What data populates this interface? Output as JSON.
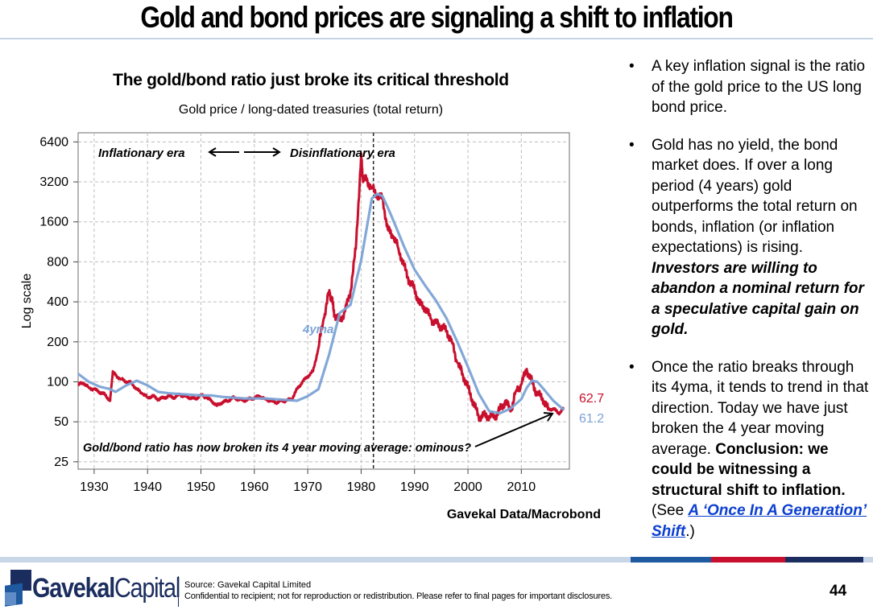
{
  "slide": {
    "title": "Gold and bond prices are signaling a shift to inflation",
    "page_number": "44",
    "accent_colors": [
      "#1f5aa0",
      "#c8102e",
      "#1b2d5e"
    ]
  },
  "chart_data": {
    "type": "line",
    "title": "The gold/bond ratio just broke its critical threshold",
    "subtitle": "Gold price / long-dated treasuries (total return)",
    "ylabel": "Log scale",
    "yscale": "log",
    "ylim": [
      22,
      7500
    ],
    "xlim": [
      1927,
      2019
    ],
    "yticks": [
      6400,
      3200,
      1600,
      800,
      400,
      200,
      100,
      50,
      25
    ],
    "xticks": [
      1930,
      1940,
      1950,
      1960,
      1970,
      1980,
      1990,
      2000,
      2010
    ],
    "grid": true,
    "source_label": "Gavekal Data/Macrobond",
    "vline_x": 1982.3,
    "annotations": {
      "era_left": "Inflationary era",
      "era_right": "Disinflationary era",
      "ma_label": "4yma",
      "bottom_note": "Gold/bond ratio has now broken its 4 year moving average: ominous?"
    },
    "end_labels": {
      "ratio": "62.7",
      "ma": "61.2"
    },
    "series": [
      {
        "color": "#c8102e",
        "x": [
          1927,
          1928,
          1929,
          1930,
          1931,
          1932,
          1933,
          1933.5,
          1934,
          1935,
          1936,
          1937,
          1938,
          1939,
          1940,
          1941,
          1942,
          1943,
          1944,
          1945,
          1946,
          1947,
          1948,
          1949,
          1950,
          1951,
          1952,
          1953,
          1954,
          1955,
          1956,
          1957,
          1958,
          1959,
          1960,
          1961,
          1962,
          1963,
          1964,
          1965,
          1966,
          1967,
          1968,
          1969,
          1970,
          1971,
          1972,
          1973,
          1974,
          1974.5,
          1975,
          1976,
          1977,
          1978,
          1979,
          1980,
          1980.3,
          1981,
          1982,
          1983,
          1984,
          1985,
          1986,
          1987,
          1988,
          1989,
          1990,
          1991,
          1992,
          1993,
          1994,
          1995,
          1996,
          1997,
          1998,
          1999,
          2000,
          2001,
          2002,
          2003,
          2004,
          2005,
          2006,
          2007,
          2008,
          2009,
          2010,
          2011,
          2012,
          2013,
          2014,
          2015,
          2016,
          2017,
          2018
        ],
        "values": [
          95,
          98,
          90,
          88,
          84,
          80,
          72,
          120,
          112,
          105,
          100,
          98,
          88,
          82,
          76,
          78,
          74,
          76,
          78,
          76,
          80,
          78,
          76,
          74,
          80,
          76,
          72,
          66,
          70,
          72,
          76,
          74,
          72,
          74,
          76,
          78,
          74,
          72,
          70,
          72,
          72,
          74,
          88,
          100,
          110,
          120,
          180,
          300,
          480,
          420,
          320,
          290,
          340,
          480,
          1000,
          5000,
          3500,
          3300,
          2900,
          2500,
          2400,
          1400,
          1250,
          1000,
          750,
          580,
          500,
          380,
          360,
          300,
          280,
          260,
          240,
          200,
          140,
          115,
          90,
          70,
          55,
          56,
          55,
          54,
          62,
          72,
          60,
          85,
          95,
          125,
          100,
          80,
          75,
          62,
          63,
          58,
          62.7
        ]
      },
      {
        "name": "4yma",
        "color": "#7ca3d6",
        "x": [
          1927,
          1929,
          1931,
          1933,
          1934,
          1936,
          1938,
          1940,
          1942,
          1944,
          1946,
          1948,
          1950,
          1952,
          1954,
          1956,
          1958,
          1960,
          1962,
          1964,
          1966,
          1968,
          1970,
          1972,
          1974,
          1976,
          1978,
          1980,
          1982,
          1983,
          1984,
          1985,
          1986,
          1988,
          1990,
          1992,
          1994,
          1996,
          1998,
          2000,
          2002,
          2004,
          2006,
          2008,
          2010,
          2011,
          2012,
          2013,
          2014,
          2016,
          2018
        ],
        "values": [
          115,
          100,
          92,
          88,
          84,
          94,
          102,
          94,
          84,
          82,
          81,
          80,
          79,
          79,
          77,
          76,
          75,
          75,
          75,
          74,
          73,
          72,
          78,
          88,
          160,
          330,
          380,
          820,
          2400,
          2600,
          2500,
          2050,
          1650,
          1050,
          700,
          530,
          410,
          300,
          200,
          130,
          82,
          60,
          58,
          63,
          74,
          90,
          102,
          100,
          90,
          72,
          61.2
        ]
      }
    ]
  },
  "bullets": [
    {
      "text": "A key inflation signal is the ratio of the gold price to the US long bond price."
    },
    {
      "text": "Gold has no yield, the bond market does. If over a long period (4 years) gold outperforms the total return on bonds, inflation (or inflation expectations) is rising. ",
      "emphasis": "Investors are willing to abandon a nominal return for a speculative capital gain on gold."
    },
    {
      "text": "Once the ratio breaks through its 4yma, it tends to trend in that direction. Today we have just broken the 4 year moving average. ",
      "emphasis": "Conclusion: we could be witnessing a structural shift to inflation.",
      "see_prefix": " (See ",
      "link": "A ‘Once In A Generation’ Shift",
      "see_suffix": ".)"
    }
  ],
  "footer": {
    "logo_bold": "Gavekal",
    "logo_light": "Capital",
    "source": "Source: Gavekal Capital Limited",
    "confidential": "Confidential to recipient; not for reproduction or redistribution. Please refer to final pages for important disclosures."
  }
}
